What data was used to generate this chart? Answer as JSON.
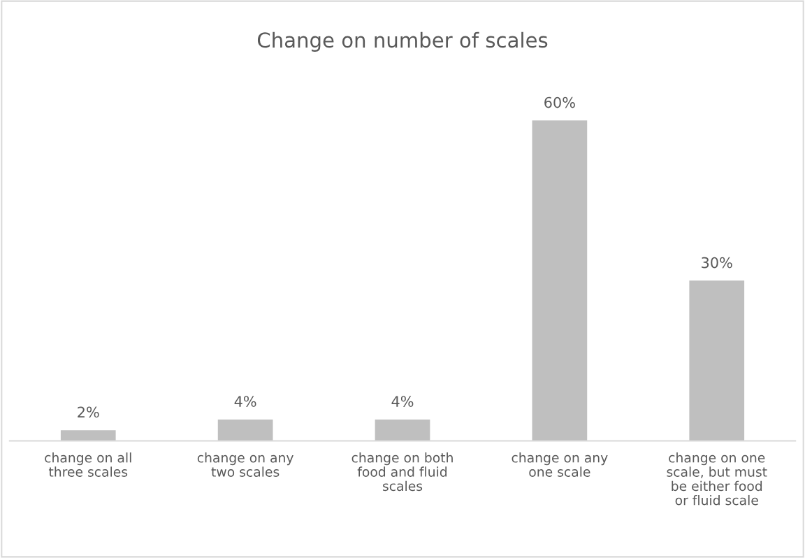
{
  "chart_data": {
    "type": "bar",
    "title": "Change on number of scales",
    "categories": [
      "change on all three scales",
      "change on any two scales",
      "change on both food and fluid scales",
      "change on any one scale",
      "change on one scale, but must be either food or fluid scale"
    ],
    "values": [
      2,
      4,
      4,
      60,
      30
    ],
    "value_labels": [
      "2%",
      "4%",
      "4%",
      "60%",
      "30%"
    ],
    "color": "#bfbfbf"
  }
}
